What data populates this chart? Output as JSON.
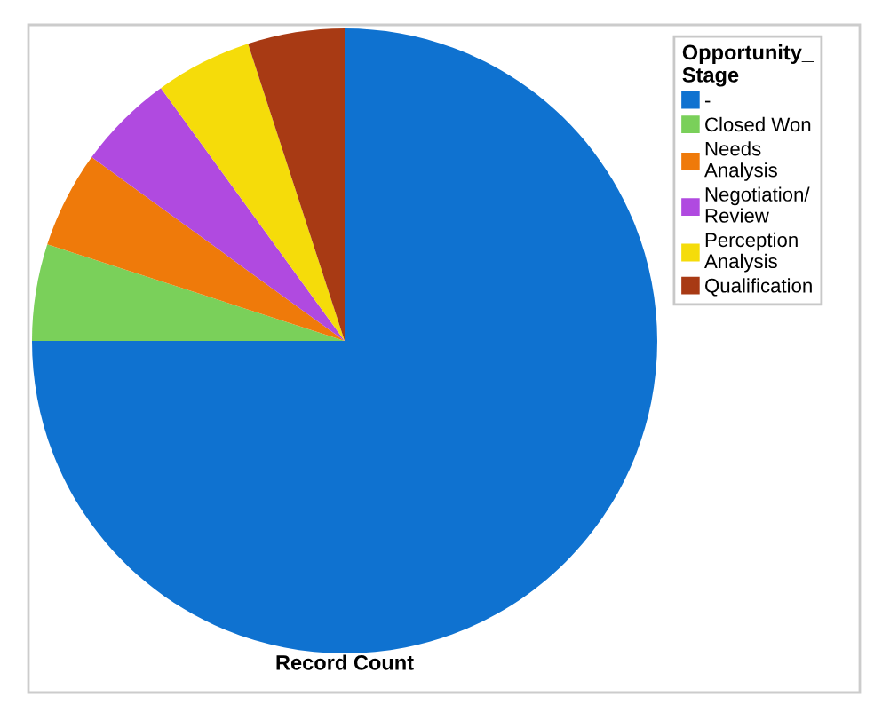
{
  "chart_data": {
    "type": "pie",
    "xlabel": "Record Count",
    "legend_title": "Opportunity_\nStage",
    "legend": "top right",
    "categories": [
      "-",
      "Closed Won",
      "Needs\nAnalysis",
      "Negotiation/\nReview",
      "Perception\nAnalysis",
      "Qualification"
    ],
    "values": [
      75,
      5,
      5,
      5,
      5,
      5
    ],
    "colors": [
      "#0f72d0",
      "#7ad05a",
      "#ef7a0a",
      "#b04ae0",
      "#f5dc0a",
      "#a83a14"
    ]
  }
}
